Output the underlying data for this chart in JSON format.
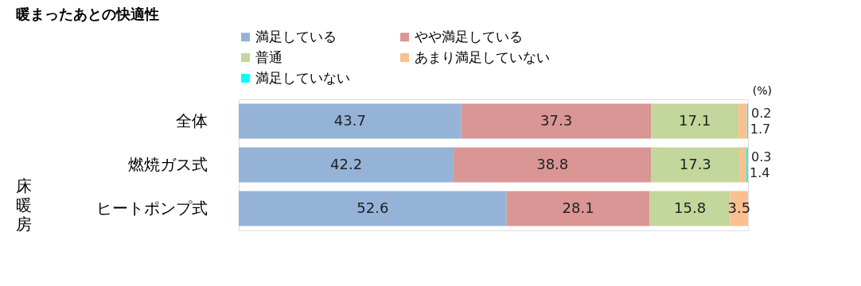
{
  "chart_data": {
    "type": "bar",
    "orientation": "horizontal",
    "stacked": true,
    "title": "暖まったあとの快適性",
    "categories": [
      "全体",
      "燃焼ガス式",
      "ヒートポンプ式"
    ],
    "series": [
      {
        "name": "満足している",
        "color": "#95b3d7",
        "values": [
          43.7,
          42.2,
          52.6
        ]
      },
      {
        "name": "やや満足している",
        "color": "#d99694",
        "values": [
          37.3,
          38.8,
          28.1
        ]
      },
      {
        "name": "普通",
        "color": "#c3d69b",
        "values": [
          17.1,
          17.3,
          15.8
        ]
      },
      {
        "name": "あまり満足していない",
        "color": "#fac090",
        "values": [
          1.7,
          1.4,
          3.5
        ]
      },
      {
        "name": "満足していない",
        "color": "#00ffff",
        "values": [
          0.2,
          0.3,
          null
        ]
      }
    ],
    "xlim": [
      0,
      100
    ],
    "tick_labels": "y",
    "data_labels": true,
    "legend": "top",
    "annotations": [
      "床暖房",
      "(%)"
    ]
  }
}
